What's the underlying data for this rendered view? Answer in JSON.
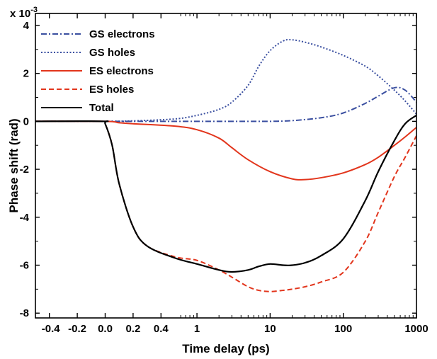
{
  "chart_data": {
    "type": "line",
    "title": "",
    "xlabel": "Time delay (ps)",
    "ylabel": "Phase shift (rad)",
    "y_multiplier_label": "x 10",
    "y_multiplier_exponent": "-3",
    "x_scale": "linear from -0.5 to 0.5 ps, logarithmic from 0.5 to 1000 ps",
    "xlim": [
      -0.5,
      1000
    ],
    "ylim": [
      -8.2,
      4.5
    ],
    "x_ticks": [
      {
        "value": -0.4,
        "label": "-0.4"
      },
      {
        "value": -0.2,
        "label": "-0.2"
      },
      {
        "value": 0.0,
        "label": "0.0"
      },
      {
        "value": 0.2,
        "label": "0.2"
      },
      {
        "value": 0.4,
        "label": "0.4"
      },
      {
        "value": 1,
        "label": "1"
      },
      {
        "value": 10,
        "label": "10"
      },
      {
        "value": 100,
        "label": "100"
      },
      {
        "value": 1000,
        "label": "1000"
      }
    ],
    "y_ticks": [
      {
        "value": 4,
        "label": "4"
      },
      {
        "value": 2,
        "label": "2"
      },
      {
        "value": 0,
        "label": "0"
      },
      {
        "value": -2,
        "label": "-2"
      },
      {
        "value": -4,
        "label": "-4"
      },
      {
        "value": -6,
        "label": "-6"
      },
      {
        "value": -8,
        "label": "-8"
      }
    ],
    "grid": false,
    "legend_position": "top-left",
    "series": [
      {
        "name": "GS electrons",
        "color": "#3a4fa0",
        "style": "dashdot",
        "x": [
          -0.5,
          0.0,
          0.5,
          1,
          2,
          5,
          10,
          20,
          50,
          100,
          200,
          300,
          500,
          700,
          1000
        ],
        "y": [
          0,
          0,
          0,
          0,
          0,
          0,
          0,
          0.03,
          0.15,
          0.35,
          0.75,
          1.05,
          1.4,
          1.3,
          0.8
        ]
      },
      {
        "name": "GS holes",
        "color": "#3a4fa0",
        "style": "dotted",
        "x": [
          -0.5,
          0.0,
          0.2,
          0.5,
          1,
          2,
          3,
          5,
          7,
          10,
          15,
          20,
          30,
          50,
          100,
          200,
          300,
          500,
          700,
          1000
        ],
        "y": [
          0,
          0,
          0.02,
          0.1,
          0.25,
          0.5,
          0.8,
          1.5,
          2.3,
          2.95,
          3.35,
          3.4,
          3.3,
          3.1,
          2.75,
          2.3,
          1.9,
          1.3,
          0.85,
          0.3
        ]
      },
      {
        "name": "ES electrons",
        "color": "#e2351c",
        "style": "solid",
        "x": [
          -0.5,
          0.0,
          0.1,
          0.2,
          0.5,
          1,
          2,
          3,
          5,
          10,
          20,
          30,
          50,
          100,
          200,
          300,
          500,
          700,
          1000
        ],
        "y": [
          0,
          0,
          -0.06,
          -0.1,
          -0.2,
          -0.35,
          -0.7,
          -1.1,
          -1.6,
          -2.1,
          -2.4,
          -2.43,
          -2.35,
          -2.15,
          -1.8,
          -1.5,
          -1.0,
          -0.65,
          -0.25
        ]
      },
      {
        "name": "ES holes",
        "color": "#e2351c",
        "style": "dashed",
        "x": [
          -0.5,
          -0.02,
          0.0,
          0.05,
          0.1,
          0.2,
          0.3,
          0.5,
          1,
          2,
          3,
          5,
          7,
          10,
          15,
          20,
          30,
          50,
          100,
          200,
          300,
          500,
          700,
          1000
        ],
        "y": [
          0,
          0,
          -0.1,
          -1.0,
          -2.6,
          -4.4,
          -5.2,
          -5.65,
          -5.8,
          -6.2,
          -6.5,
          -6.9,
          -7.05,
          -7.1,
          -7.05,
          -7.0,
          -6.9,
          -6.7,
          -6.3,
          -5.0,
          -3.8,
          -2.3,
          -1.5,
          -0.6
        ]
      },
      {
        "name": "Total",
        "color": "#000000",
        "style": "solid",
        "x": [
          -0.5,
          -0.02,
          0.0,
          0.05,
          0.1,
          0.2,
          0.3,
          0.5,
          1,
          2,
          3,
          5,
          7,
          10,
          15,
          20,
          30,
          50,
          100,
          200,
          300,
          500,
          700,
          1000
        ],
        "y": [
          0,
          0,
          -0.1,
          -1.0,
          -2.6,
          -4.4,
          -5.2,
          -5.7,
          -5.95,
          -6.2,
          -6.28,
          -6.2,
          -6.05,
          -5.95,
          -6.0,
          -6.0,
          -5.9,
          -5.6,
          -4.9,
          -3.3,
          -2.1,
          -0.8,
          -0.1,
          0.25
        ]
      }
    ]
  }
}
